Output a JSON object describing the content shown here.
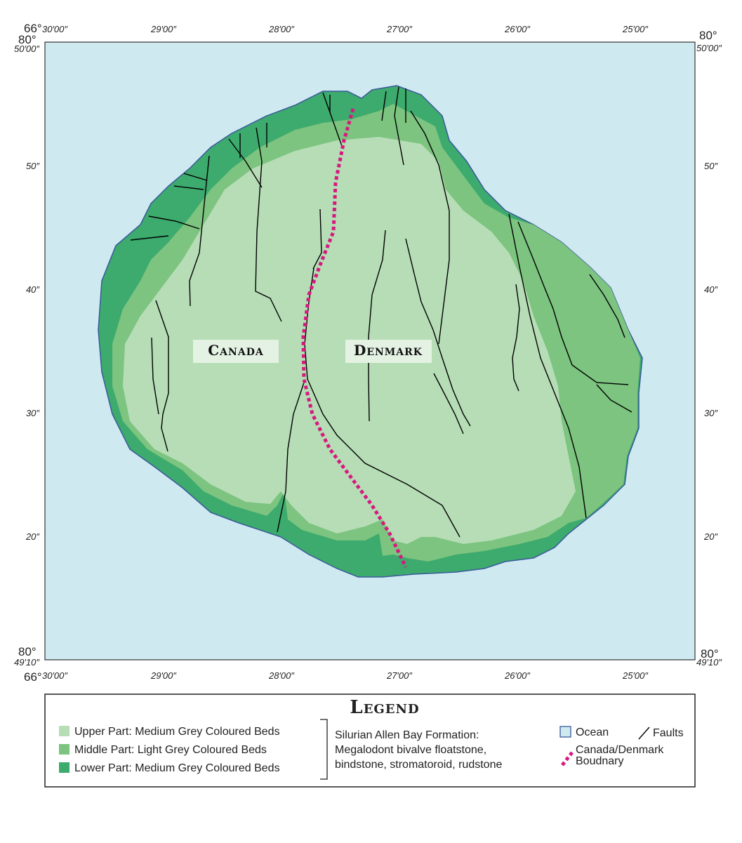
{
  "longitude_labels": {
    "degrees": "66°",
    "corner": "30′00″",
    "ticks": [
      "29′00″",
      "28′00″",
      "27′00″",
      "26′00″",
      "25′00″"
    ]
  },
  "latitude_labels": {
    "degrees_top": "80°",
    "top": "50′00″",
    "ticks": [
      "50″",
      "40″",
      "30″",
      "20″"
    ],
    "degrees_bottom": "80°",
    "bottom": "49′10″"
  },
  "map": {
    "labels": [
      "Canada",
      "Denmark"
    ]
  },
  "legend": {
    "title": "Legend",
    "units": [
      "Upper Part: Medium Grey Coloured Beds",
      "Middle Part: Light Grey Coloured Beds",
      "Lower Part: Medium Grey Coloured Beds"
    ],
    "formation": [
      "Silurian Allen Bay Formation:",
      "Megalodont bivalve floatstone,",
      "bindstone, stromatoroid, rudstone"
    ],
    "ocean": "Ocean",
    "faults": "Faults",
    "boundary": [
      "Canada/Denmark",
      "Boudnary"
    ]
  }
}
